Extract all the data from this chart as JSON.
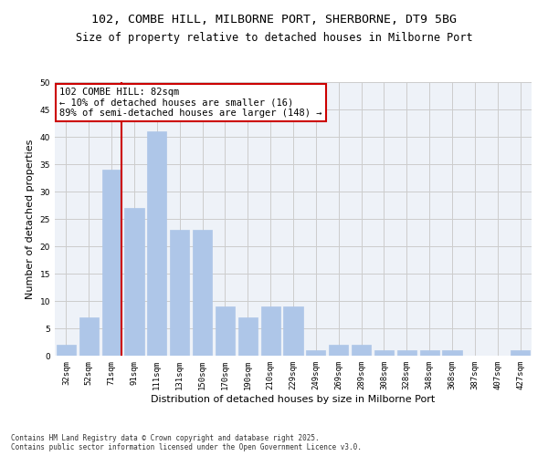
{
  "title": "102, COMBE HILL, MILBORNE PORT, SHERBORNE, DT9 5BG",
  "subtitle": "Size of property relative to detached houses in Milborne Port",
  "xlabel": "Distribution of detached houses by size in Milborne Port",
  "ylabel": "Number of detached properties",
  "categories": [
    "32sqm",
    "52sqm",
    "71sqm",
    "91sqm",
    "111sqm",
    "131sqm",
    "150sqm",
    "170sqm",
    "190sqm",
    "210sqm",
    "229sqm",
    "249sqm",
    "269sqm",
    "289sqm",
    "308sqm",
    "328sqm",
    "348sqm",
    "368sqm",
    "387sqm",
    "407sqm",
    "427sqm"
  ],
  "values": [
    2,
    7,
    34,
    27,
    41,
    23,
    23,
    9,
    7,
    9,
    9,
    1,
    2,
    2,
    1,
    1,
    1,
    1,
    0,
    0,
    1
  ],
  "bar_color": "#aec6e8",
  "bar_edge_color": "#aec6e8",
  "vline_index": 2,
  "vline_color": "#cc0000",
  "annotation_text": "102 COMBE HILL: 82sqm\n← 10% of detached houses are smaller (16)\n89% of semi-detached houses are larger (148) →",
  "annotation_box_color": "#ffffff",
  "annotation_box_edge": "#cc0000",
  "ylim": [
    0,
    50
  ],
  "yticks": [
    0,
    5,
    10,
    15,
    20,
    25,
    30,
    35,
    40,
    45,
    50
  ],
  "grid_color": "#cccccc",
  "bg_color": "#eef2f8",
  "footer": "Contains HM Land Registry data © Crown copyright and database right 2025.\nContains public sector information licensed under the Open Government Licence v3.0.",
  "title_fontsize": 9.5,
  "subtitle_fontsize": 8.5,
  "xlabel_fontsize": 8,
  "ylabel_fontsize": 8,
  "tick_fontsize": 6.5,
  "annotation_fontsize": 7.5,
  "footer_fontsize": 5.5
}
